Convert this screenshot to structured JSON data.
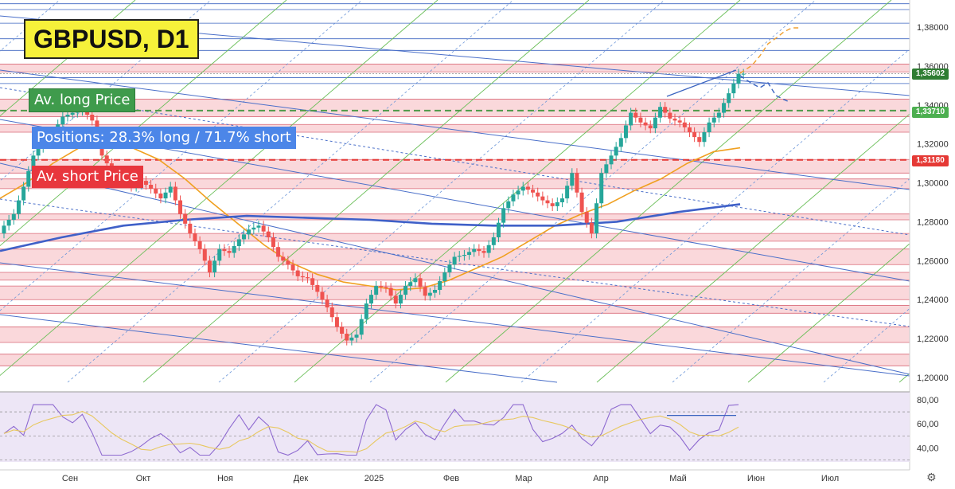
{
  "title": "GBPUSD, D1",
  "labels": {
    "long": "Av. long Price",
    "positions": "Positions: 28.3% long / 71.7% short",
    "short": "Av. short Price"
  },
  "price_tags": [
    {
      "value": "1,35602",
      "color": "#2e7d32"
    },
    {
      "value": "1,33710",
      "color": "#4caf50"
    },
    {
      "value": "1,31180",
      "color": "#e53935"
    }
  ],
  "settings_icon": "gear-icon",
  "colors": {
    "up": "#26a69a",
    "down": "#ef5350",
    "ma_fast": "#f0a020",
    "ma_slow": "#3f60c8",
    "zone": "#f8c8cc",
    "zone_line": "#d96a78",
    "green_line": "#6bbf59",
    "blue_line": "#4a6fc9"
  },
  "chart_data": {
    "type": "candlestick",
    "title": "GBPUSD, D1",
    "y_ticks": [
      "1,38000",
      "1,36000",
      "1,34000",
      "1,32000",
      "1,30000",
      "1,28000",
      "1,26000",
      "1,24000",
      "1,22000",
      "1,20000"
    ],
    "ylim": [
      1.2,
      1.392
    ],
    "x_ticks": [
      "Сен",
      "Окт",
      "Ноя",
      "Дек",
      "2025",
      "Фев",
      "Мар",
      "Апр",
      "Май",
      "Июн",
      "Июл"
    ],
    "av_long_price": 1.3371,
    "av_short_price": 1.3118,
    "last_price": 1.35602,
    "positions_long_pct": 28.3,
    "positions_short_pct": 71.7,
    "close_path": [
      1.278,
      1.284,
      1.298,
      1.314,
      1.322,
      1.326,
      1.334,
      1.336,
      1.338,
      1.332,
      1.314,
      1.306,
      1.304,
      1.298,
      1.301,
      1.297,
      1.292,
      1.298,
      1.284,
      1.274,
      1.266,
      1.254,
      1.266,
      1.264,
      1.271,
      1.276,
      1.278,
      1.272,
      1.262,
      1.258,
      1.252,
      1.251,
      1.244,
      1.236,
      1.226,
      1.219,
      1.222,
      1.238,
      1.247,
      1.246,
      1.238,
      1.247,
      1.251,
      1.242,
      1.245,
      1.254,
      1.262,
      1.263,
      1.266,
      1.264,
      1.272,
      1.287,
      1.294,
      1.298,
      1.295,
      1.291,
      1.288,
      1.292,
      1.305,
      1.285,
      1.274,
      1.305,
      1.314,
      1.323,
      1.336,
      1.331,
      1.328,
      1.339,
      1.333,
      1.331,
      1.326,
      1.321,
      1.331,
      1.336,
      1.346,
      1.356
    ],
    "ma_fast_path": [
      1.292,
      1.3,
      1.31,
      1.318,
      1.321,
      1.318,
      1.312,
      1.302,
      1.29,
      1.279,
      1.268,
      1.259,
      1.253,
      1.249,
      1.247,
      1.245,
      1.246,
      1.25,
      1.256,
      1.262,
      1.27,
      1.278,
      1.284,
      1.289,
      1.296,
      1.302,
      1.31,
      1.316,
      1.318
    ],
    "ma_slow_path": [
      1.265,
      1.272,
      1.278,
      1.281,
      1.283,
      1.282,
      1.281,
      1.279,
      1.278,
      1.278,
      1.28,
      1.285,
      1.289
    ],
    "rsi": {
      "y_ticks": [
        "80,00",
        "60,00",
        "40,00"
      ],
      "ylim": [
        30,
        85
      ]
    }
  }
}
